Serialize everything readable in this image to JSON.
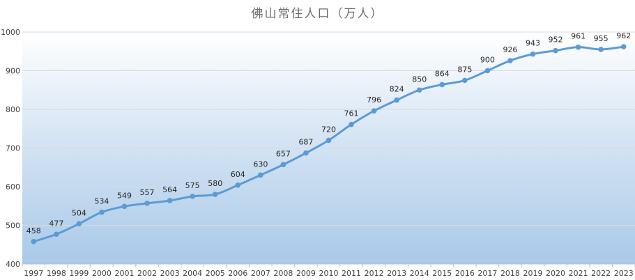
{
  "chart_data": {
    "type": "line",
    "title": "佛山常住人口（万人）",
    "xlabel": "",
    "ylabel": "",
    "ylim": [
      400,
      1000
    ],
    "yticks": [
      400,
      500,
      600,
      700,
      800,
      900,
      1000
    ],
    "grid": true,
    "legend": "none",
    "line_color": "#5b9bd5",
    "categories": [
      "1997",
      "1998",
      "1999",
      "2000",
      "2001",
      "2002",
      "2003",
      "2004",
      "2005",
      "2006",
      "2007",
      "2008",
      "2009",
      "2010",
      "2011",
      "2012",
      "2013",
      "2014",
      "2015",
      "2016",
      "2017",
      "2018",
      "2019",
      "2020",
      "2021",
      "2022",
      "2023"
    ],
    "series": [
      {
        "values": [
          458,
          477,
          504,
          534,
          549,
          557,
          564,
          575,
          580,
          604,
          630,
          657,
          687,
          720,
          761,
          796,
          824,
          850,
          864,
          875,
          900,
          926,
          943,
          952,
          961,
          955,
          962
        ]
      }
    ]
  }
}
